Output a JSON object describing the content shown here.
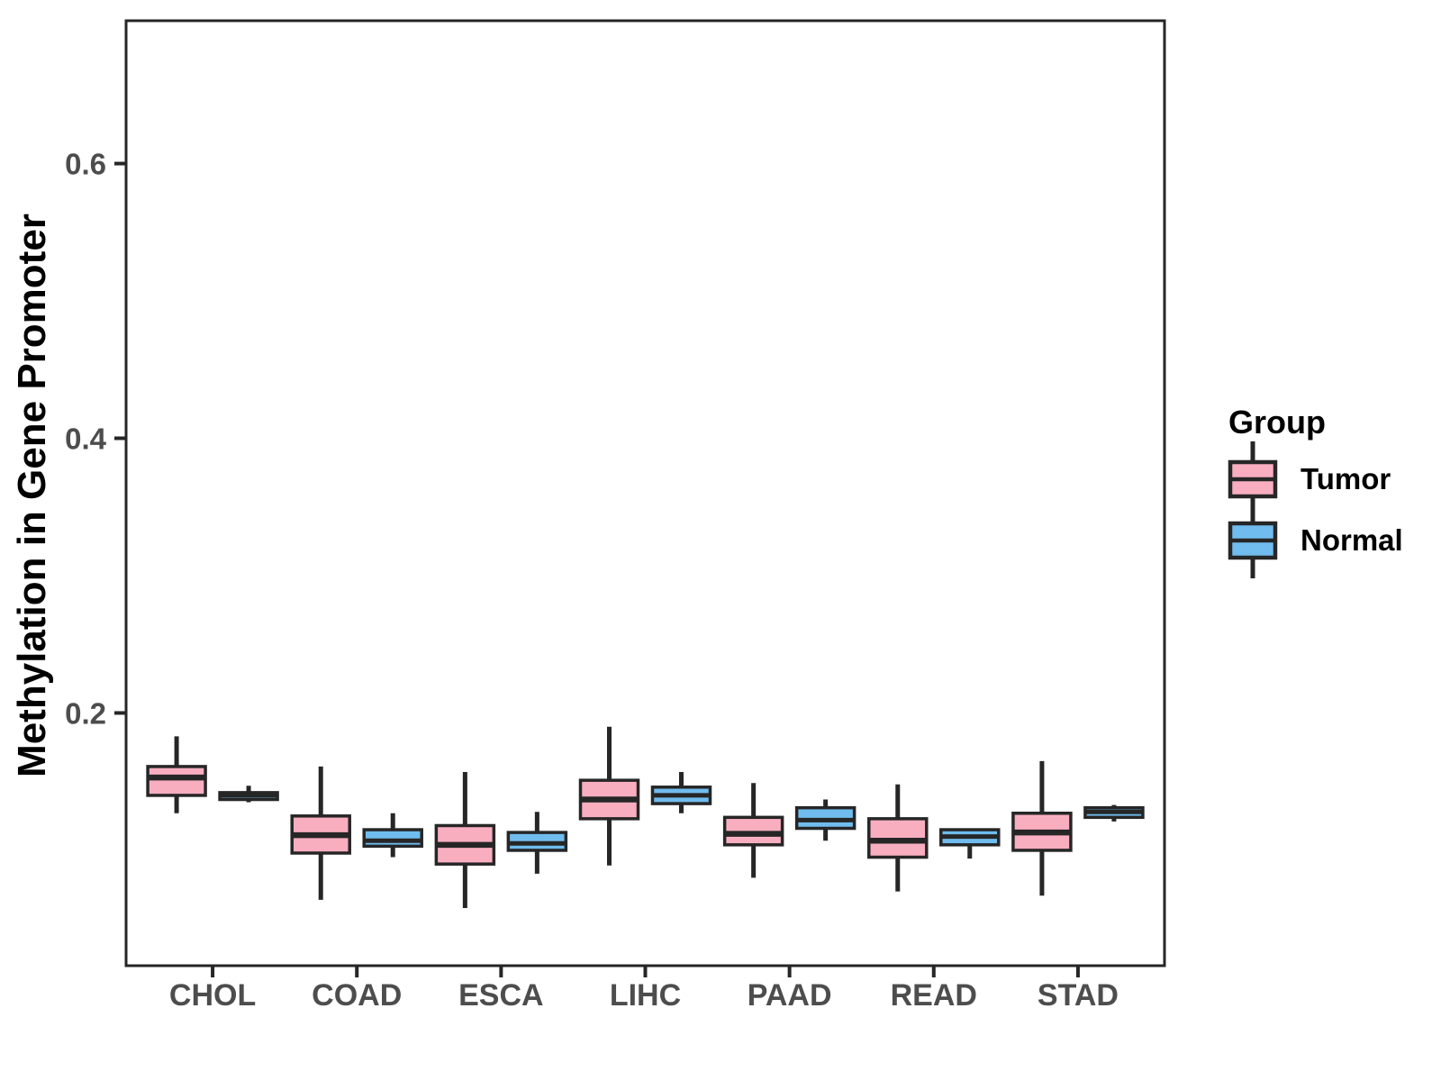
{
  "chart_data": {
    "type": "boxplot",
    "title": "",
    "ylabel": "Methylation in Gene Promoter",
    "xlabel": "",
    "categories": [
      "CHOL",
      "COAD",
      "ESCA",
      "LIHC",
      "PAAD",
      "READ",
      "STAD"
    ],
    "ylim": [
      0.016,
      0.704
    ],
    "yticks": [
      0.2,
      0.4,
      0.6
    ],
    "ytick_labels": [
      "0.2",
      "0.4",
      "0.6"
    ],
    "grid": false,
    "legend": {
      "title": "Group",
      "position": "right"
    },
    "series": [
      {
        "name": "Tumor",
        "fill": "#F9AEC0",
        "boxes": [
          {
            "category": "CHOL",
            "min": 0.127,
            "q1": 0.14,
            "median": 0.153,
            "q3": 0.161,
            "max": 0.183
          },
          {
            "category": "COAD",
            "min": 0.064,
            "q1": 0.098,
            "median": 0.111,
            "q3": 0.125,
            "max": 0.161
          },
          {
            "category": "ESCA",
            "min": 0.058,
            "q1": 0.09,
            "median": 0.104,
            "q3": 0.118,
            "max": 0.157
          },
          {
            "category": "LIHC",
            "min": 0.089,
            "q1": 0.123,
            "median": 0.137,
            "q3": 0.151,
            "max": 0.19
          },
          {
            "category": "PAAD",
            "min": 0.08,
            "q1": 0.104,
            "median": 0.112,
            "q3": 0.124,
            "max": 0.149
          },
          {
            "category": "READ",
            "min": 0.07,
            "q1": 0.095,
            "median": 0.107,
            "q3": 0.123,
            "max": 0.148
          },
          {
            "category": "STAD",
            "min": 0.067,
            "q1": 0.1,
            "median": 0.113,
            "q3": 0.127,
            "max": 0.165
          }
        ]
      },
      {
        "name": "Normal",
        "fill": "#70BCEE",
        "boxes": [
          {
            "category": "CHOL",
            "min": 0.135,
            "q1": 0.137,
            "median": 0.14,
            "q3": 0.142,
            "max": 0.147
          },
          {
            "category": "COAD",
            "min": 0.095,
            "q1": 0.103,
            "median": 0.107,
            "q3": 0.115,
            "max": 0.127
          },
          {
            "category": "ESCA",
            "min": 0.083,
            "q1": 0.1,
            "median": 0.105,
            "q3": 0.113,
            "max": 0.128
          },
          {
            "category": "LIHC",
            "min": 0.127,
            "q1": 0.134,
            "median": 0.14,
            "q3": 0.146,
            "max": 0.157
          },
          {
            "category": "PAAD",
            "min": 0.107,
            "q1": 0.116,
            "median": 0.122,
            "q3": 0.131,
            "max": 0.137
          },
          {
            "category": "READ",
            "min": 0.094,
            "q1": 0.104,
            "median": 0.11,
            "q3": 0.115,
            "max": 0.116
          },
          {
            "category": "STAD",
            "min": 0.121,
            "q1": 0.124,
            "median": 0.128,
            "q3": 0.131,
            "max": 0.133
          }
        ]
      }
    ],
    "style": {
      "outline": "#262626",
      "axis_text_color": "#4d4d4d",
      "title_color": "#000000",
      "background": "#ffffff"
    }
  }
}
